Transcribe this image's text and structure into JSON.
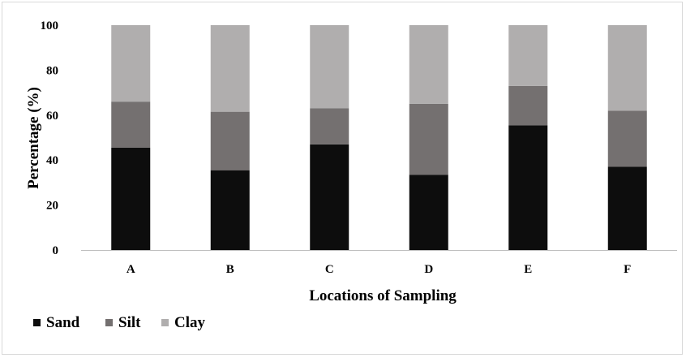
{
  "chart_data": {
    "type": "bar",
    "stacked": true,
    "title": "",
    "xlabel": "Locations of Sampling",
    "ylabel": "Percentage (%)",
    "ylim": [
      0,
      100
    ],
    "yticks": [
      0,
      20,
      40,
      60,
      80,
      100
    ],
    "grid": false,
    "legend_position": "bottom-left",
    "categories": [
      "A",
      "B",
      "C",
      "D",
      "E",
      "F"
    ],
    "series": [
      {
        "name": "Sand",
        "color": "#0d0d0d",
        "values": [
          45.5,
          35.5,
          47,
          33.5,
          55.5,
          37
        ]
      },
      {
        "name": "Silt",
        "color": "#747070",
        "values": [
          20.5,
          26,
          16,
          31.5,
          17.5,
          25
        ]
      },
      {
        "name": "Clay",
        "color": "#b0aeae",
        "values": [
          34,
          38.5,
          37,
          35,
          27,
          38
        ]
      }
    ]
  }
}
